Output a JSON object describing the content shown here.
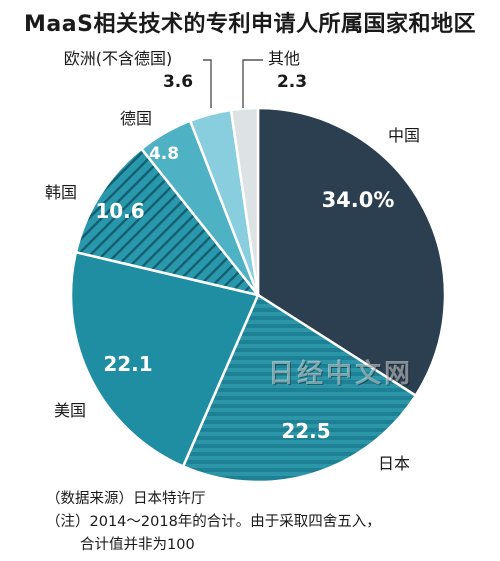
{
  "title": "MaaS相关技术的专利申请人所属国家和地区",
  "chart_data": {
    "type": "pie",
    "title": "MaaS相关技术的专利申请人所属国家和地区",
    "unit": "%",
    "slices": [
      {
        "label": "中国",
        "value": 34.0,
        "value_text": "34.0%",
        "color": "#2b3f50",
        "pattern": "solid"
      },
      {
        "label": "日本",
        "value": 22.5,
        "value_text": "22.5",
        "color": "#1e8094",
        "pattern": "horizontal-stripes"
      },
      {
        "label": "美国",
        "value": 22.1,
        "value_text": "22.1",
        "color": "#1f8ea3",
        "pattern": "solid"
      },
      {
        "label": "韩国",
        "value": 10.6,
        "value_text": "10.6",
        "color": "#2a98ac",
        "pattern": "diagonal-hatch"
      },
      {
        "label": "德国",
        "value": 4.8,
        "value_text": "4.8",
        "color": "#4fb1c4",
        "pattern": "solid"
      },
      {
        "label": "欧洲(不含德国)",
        "value": 3.6,
        "value_text": "3.6",
        "color": "#88cede",
        "pattern": "solid"
      },
      {
        "label": "其他",
        "value": 2.3,
        "value_text": "2.3",
        "color": "#dde3e4",
        "pattern": "solid"
      }
    ]
  },
  "notes": {
    "source": "（数据来源）日本特许厅",
    "note_line1": "（注）2014～2018年的合计。由于采取四舍五入，",
    "note_line2": "合计值并非为100"
  },
  "watermark": "日经中文网"
}
